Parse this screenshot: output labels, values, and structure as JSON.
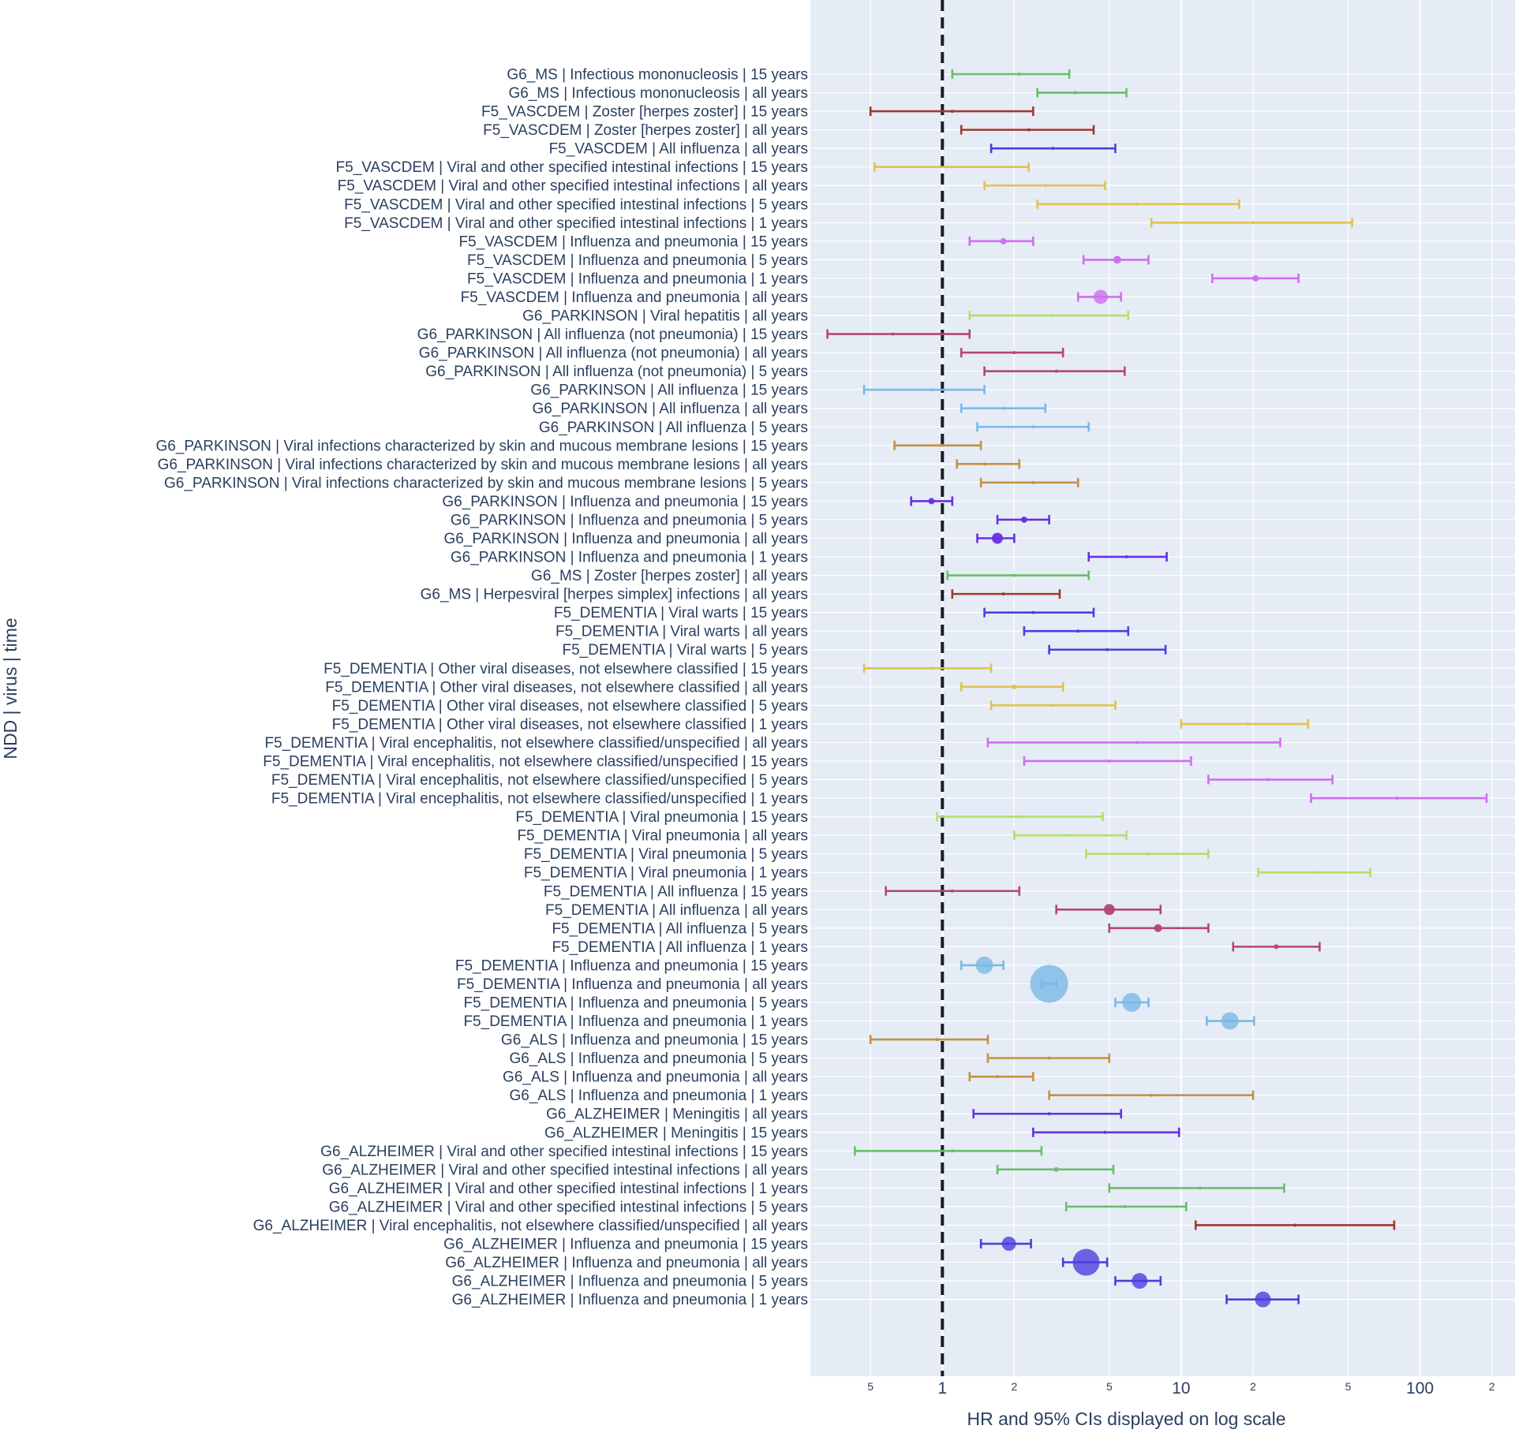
{
  "chart_data": {
    "type": "scatter",
    "xlabel": "HR and 95% CIs displayed on log scale",
    "ylabel": "NDD | virus | time",
    "x_scale": "log",
    "xlim": [
      0.28,
      250
    ],
    "x_ticks_major": [
      {
        "value": 1,
        "label": "1"
      },
      {
        "value": 10,
        "label": "10"
      },
      {
        "value": 100,
        "label": "100"
      }
    ],
    "x_ticks_minor": [
      {
        "value": 0.5,
        "label": "5"
      },
      {
        "value": 2,
        "label": "2"
      },
      {
        "value": 5,
        "label": "5"
      },
      {
        "value": 20,
        "label": "2"
      },
      {
        "value": 50,
        "label": "5"
      },
      {
        "value": 200,
        "label": "2"
      }
    ],
    "reference_line": {
      "x": 1,
      "style": "dashed"
    },
    "grid": true,
    "background": "#e5ecf6",
    "rows": [
      {
        "label": "G6_MS | Infectious mononucleosis | 15 years",
        "hr": 2.1,
        "lo": 1.1,
        "hi": 3.4,
        "color": "#6abf69",
        "size": 0
      },
      {
        "label": "G6_MS | Infectious mononucleosis | all years",
        "hr": 3.6,
        "lo": 2.5,
        "hi": 5.9,
        "color": "#6abf69",
        "size": 0
      },
      {
        "label": "F5_VASCDEM | Zoster [herpes zoster] | 15 years",
        "hr": 1.1,
        "lo": 0.5,
        "hi": 2.4,
        "color": "#a0392e",
        "size": 0
      },
      {
        "label": "F5_VASCDEM | Zoster [herpes zoster] | all years",
        "hr": 2.3,
        "lo": 1.2,
        "hi": 4.3,
        "color": "#a0392e",
        "size": 0
      },
      {
        "label": "F5_VASCDEM | All influenza | all years",
        "hr": 2.9,
        "lo": 1.6,
        "hi": 5.3,
        "color": "#4b3fe0",
        "size": 0
      },
      {
        "label": "F5_VASCDEM | Viral and other specified intestinal infections | 15 years",
        "hr": 1.1,
        "lo": 0.52,
        "hi": 2.3,
        "color": "#e0c350",
        "size": 0
      },
      {
        "label": "F5_VASCDEM | Viral and other specified intestinal infections | all years",
        "hr": 2.7,
        "lo": 1.5,
        "hi": 4.8,
        "color": "#e0c350",
        "size": 0
      },
      {
        "label": "F5_VASCDEM | Viral and other specified intestinal infections | 5 years",
        "hr": 6.5,
        "lo": 2.5,
        "hi": 17.5,
        "color": "#e0c350",
        "size": 0
      },
      {
        "label": "F5_VASCDEM | Viral and other specified intestinal infections | 1 years",
        "hr": 20,
        "lo": 7.5,
        "hi": 52,
        "color": "#e0c350",
        "size": 0
      },
      {
        "label": "F5_VASCDEM | Influenza and pneumonia | 15 years",
        "hr": 1.8,
        "lo": 1.3,
        "hi": 2.4,
        "color": "#cf6ef0",
        "size": 4
      },
      {
        "label": "F5_VASCDEM | Influenza and pneumonia | 5 years",
        "hr": 5.4,
        "lo": 3.9,
        "hi": 7.3,
        "color": "#cf6ef0",
        "size": 5
      },
      {
        "label": "F5_VASCDEM | Influenza and pneumonia | 1 years",
        "hr": 20.5,
        "lo": 13.5,
        "hi": 31,
        "color": "#cf6ef0",
        "size": 4
      },
      {
        "label": "F5_VASCDEM | Influenza and pneumonia | all years",
        "hr": 4.6,
        "lo": 3.7,
        "hi": 5.6,
        "color": "#cf6ef0",
        "size": 9
      },
      {
        "label": "G6_PARKINSON | Viral hepatitis | all years",
        "hr": 2.9,
        "lo": 1.3,
        "hi": 6.0,
        "color": "#b2e06b",
        "size": 0
      },
      {
        "label": "G6_PARKINSON | All influenza (not pneumonia) | 15 years",
        "hr": 0.62,
        "lo": 0.33,
        "hi": 1.3,
        "color": "#b34770",
        "size": 0
      },
      {
        "label": "G6_PARKINSON | All influenza (not pneumonia) | all years",
        "hr": 2.0,
        "lo": 1.2,
        "hi": 3.2,
        "color": "#b34770",
        "size": 0
      },
      {
        "label": "G6_PARKINSON | All influenza (not pneumonia) | 5 years",
        "hr": 3.0,
        "lo": 1.5,
        "hi": 5.8,
        "color": "#b34770",
        "size": 0
      },
      {
        "label": "G6_PARKINSON | All influenza | 15 years",
        "hr": 0.9,
        "lo": 0.47,
        "hi": 1.5,
        "color": "#7ab9e6",
        "size": 0
      },
      {
        "label": "G6_PARKINSON | All influenza | all years",
        "hr": 1.8,
        "lo": 1.2,
        "hi": 2.7,
        "color": "#7ab9e6",
        "size": 0
      },
      {
        "label": "G6_PARKINSON | All influenza | 5 years",
        "hr": 2.4,
        "lo": 1.4,
        "hi": 4.1,
        "color": "#7ab9e6",
        "size": 0
      },
      {
        "label": "G6_PARKINSON | Viral infections characterized by skin and mucous membrane lesions | 15 years",
        "hr": 1.0,
        "lo": 0.63,
        "hi": 1.45,
        "color": "#c89040",
        "size": 0
      },
      {
        "label": "G6_PARKINSON | Viral infections characterized by skin and mucous membrane lesions | all years",
        "hr": 1.5,
        "lo": 1.15,
        "hi": 2.1,
        "color": "#c89040",
        "size": 0
      },
      {
        "label": "G6_PARKINSON | Viral infections characterized by skin and mucous membrane lesions | 5 years",
        "hr": 2.4,
        "lo": 1.45,
        "hi": 3.7,
        "color": "#c89040",
        "size": 0
      },
      {
        "label": "G6_PARKINSON | Influenza and pneumonia | 15 years",
        "hr": 0.9,
        "lo": 0.74,
        "hi": 1.1,
        "color": "#6930e0",
        "size": 4
      },
      {
        "label": "G6_PARKINSON | Influenza and pneumonia | 5 years",
        "hr": 2.2,
        "lo": 1.7,
        "hi": 2.8,
        "color": "#6930e0",
        "size": 4
      },
      {
        "label": "G6_PARKINSON | Influenza and pneumonia | all years",
        "hr": 1.7,
        "lo": 1.4,
        "hi": 2.0,
        "color": "#6930e0",
        "size": 7
      },
      {
        "label": "G6_PARKINSON | Influenza and pneumonia | 1 years",
        "hr": 5.9,
        "lo": 4.1,
        "hi": 8.7,
        "color": "#6930e0",
        "size": 0
      },
      {
        "label": "G6_MS | Zoster [herpes zoster] | all years",
        "hr": 2.0,
        "lo": 1.05,
        "hi": 4.1,
        "color": "#6abf69",
        "size": 0
      },
      {
        "label": "G6_MS | Herpesviral [herpes simplex] infections | all years",
        "hr": 1.8,
        "lo": 1.1,
        "hi": 3.1,
        "color": "#a0392e",
        "size": 0
      },
      {
        "label": "F5_DEMENTIA | Viral warts | 15 years",
        "hr": 2.4,
        "lo": 1.5,
        "hi": 4.3,
        "color": "#4b3fe0",
        "size": 0
      },
      {
        "label": "F5_DEMENTIA | Viral warts | all years",
        "hr": 3.7,
        "lo": 2.2,
        "hi": 6.0,
        "color": "#4b3fe0",
        "size": 0
      },
      {
        "label": "F5_DEMENTIA | Viral warts | 5 years",
        "hr": 4.9,
        "lo": 2.8,
        "hi": 8.6,
        "color": "#4b3fe0",
        "size": 0
      },
      {
        "label": "F5_DEMENTIA | Other viral diseases, not elsewhere classified | 15 years",
        "hr": 0.9,
        "lo": 0.47,
        "hi": 1.6,
        "color": "#e0c350",
        "size": 0
      },
      {
        "label": "F5_DEMENTIA | Other viral diseases, not elsewhere classified | all years",
        "hr": 2.0,
        "lo": 1.2,
        "hi": 3.2,
        "color": "#e0c350",
        "size": 3
      },
      {
        "label": "F5_DEMENTIA | Other viral diseases, not elsewhere classified | 5 years",
        "hr": 2.9,
        "lo": 1.6,
        "hi": 5.3,
        "color": "#e0c350",
        "size": 0
      },
      {
        "label": "F5_DEMENTIA | Other viral diseases, not elsewhere classified | 1 years",
        "hr": 19,
        "lo": 10,
        "hi": 34,
        "color": "#e0c350",
        "size": 0
      },
      {
        "label": "F5_DEMENTIA | Viral encephalitis, not elsewhere classified/unspecified | all years",
        "hr": 6.5,
        "lo": 1.55,
        "hi": 26,
        "color": "#cf6ef0",
        "size": 0
      },
      {
        "label": "F5_DEMENTIA | Viral encephalitis, not elsewhere classified/unspecified | 15 years",
        "hr": 5.0,
        "lo": 2.2,
        "hi": 11,
        "color": "#cf6ef0",
        "size": 0
      },
      {
        "label": "F5_DEMENTIA | Viral encephalitis, not elsewhere classified/unspecified | 5 years",
        "hr": 23,
        "lo": 13,
        "hi": 43,
        "color": "#cf6ef0",
        "size": 0
      },
      {
        "label": "F5_DEMENTIA | Viral encephalitis, not elsewhere classified/unspecified | 1 years",
        "hr": 80,
        "lo": 35,
        "hi": 190,
        "color": "#cf6ef0",
        "size": 0
      },
      {
        "label": "F5_DEMENTIA | Viral pneumonia | 15 years",
        "hr": 2.1,
        "lo": 0.95,
        "hi": 4.7,
        "color": "#b2e06b",
        "size": 0
      },
      {
        "label": "F5_DEMENTIA | Viral pneumonia | all years",
        "hr": 3.4,
        "lo": 2.0,
        "hi": 5.9,
        "color": "#b2e06b",
        "size": 0
      },
      {
        "label": "F5_DEMENTIA | Viral pneumonia | 5 years",
        "hr": 7.3,
        "lo": 4.0,
        "hi": 13,
        "color": "#b2e06b",
        "size": 0
      },
      {
        "label": "F5_DEMENTIA | Viral pneumonia | 1 years",
        "hr": 37,
        "lo": 21,
        "hi": 62,
        "color": "#b2e06b",
        "size": 0
      },
      {
        "label": "F5_DEMENTIA | All influenza | 15 years",
        "hr": 1.1,
        "lo": 0.58,
        "hi": 2.1,
        "color": "#b34770",
        "size": 0
      },
      {
        "label": "F5_DEMENTIA | All influenza | all years",
        "hr": 5.0,
        "lo": 3.0,
        "hi": 8.2,
        "color": "#b34770",
        "size": 7
      },
      {
        "label": "F5_DEMENTIA | All influenza | 5 years",
        "hr": 8.0,
        "lo": 5.0,
        "hi": 13,
        "color": "#b34770",
        "size": 5
      },
      {
        "label": "F5_DEMENTIA | All influenza | 1 years",
        "hr": 25,
        "lo": 16.5,
        "hi": 38,
        "color": "#b34770",
        "size": 3
      },
      {
        "label": "F5_DEMENTIA | Influenza and pneumonia | 15 years",
        "hr": 1.5,
        "lo": 1.2,
        "hi": 1.8,
        "color": "#7ab9e6",
        "size": 11
      },
      {
        "label": "F5_DEMENTIA | Influenza and pneumonia | all years",
        "hr": 2.8,
        "lo": 2.6,
        "hi": 3.0,
        "color": "#7ab9e6",
        "size": 24
      },
      {
        "label": "F5_DEMENTIA | Influenza and pneumonia | 5 years",
        "hr": 6.2,
        "lo": 5.3,
        "hi": 7.3,
        "color": "#7ab9e6",
        "size": 12
      },
      {
        "label": "F5_DEMENTIA | Influenza and pneumonia | 1 years",
        "hr": 16,
        "lo": 12.8,
        "hi": 20.2,
        "color": "#7ab9e6",
        "size": 11
      },
      {
        "label": "G6_ALS | Influenza and pneumonia | 15 years",
        "hr": 0.95,
        "lo": 0.5,
        "hi": 1.55,
        "color": "#c89040",
        "size": 0
      },
      {
        "label": "G6_ALS | Influenza and pneumonia | 5 years",
        "hr": 2.8,
        "lo": 1.55,
        "hi": 5.0,
        "color": "#c89040",
        "size": 0
      },
      {
        "label": "G6_ALS | Influenza and pneumonia | all years",
        "hr": 1.7,
        "lo": 1.3,
        "hi": 2.4,
        "color": "#c89040",
        "size": 0
      },
      {
        "label": "G6_ALS | Influenza and pneumonia | 1 years",
        "hr": 7.5,
        "lo": 2.8,
        "hi": 20,
        "color": "#c89040",
        "size": 0
      },
      {
        "label": "G6_ALZHEIMER | Meningitis | all years",
        "hr": 2.8,
        "lo": 1.35,
        "hi": 5.6,
        "color": "#6930e0",
        "size": 0
      },
      {
        "label": "G6_ALZHEIMER | Meningitis | 15 years",
        "hr": 4.8,
        "lo": 2.4,
        "hi": 9.8,
        "color": "#6930e0",
        "size": 0
      },
      {
        "label": "G6_ALZHEIMER | Viral and other specified intestinal infections | 15 years",
        "hr": 1.1,
        "lo": 0.43,
        "hi": 2.6,
        "color": "#6abf69",
        "size": 0
      },
      {
        "label": "G6_ALZHEIMER | Viral and other specified intestinal infections | all years",
        "hr": 3.0,
        "lo": 1.7,
        "hi": 5.2,
        "color": "#6abf69",
        "size": 3
      },
      {
        "label": "G6_ALZHEIMER | Viral and other specified intestinal infections | 1 years",
        "hr": 12,
        "lo": 5.0,
        "hi": 27,
        "color": "#6abf69",
        "size": 0
      },
      {
        "label": "G6_ALZHEIMER | Viral and other specified intestinal infections | 5 years",
        "hr": 5.8,
        "lo": 3.3,
        "hi": 10.5,
        "color": "#6abf69",
        "size": 0
      },
      {
        "label": "G6_ALZHEIMER | Viral encephalitis, not elsewhere classified/unspecified | all years",
        "hr": 30,
        "lo": 11.5,
        "hi": 78,
        "color": "#a0392e",
        "size": 0
      },
      {
        "label": "G6_ALZHEIMER | Influenza and pneumonia | 15 years",
        "hr": 1.9,
        "lo": 1.45,
        "hi": 2.35,
        "color": "#4b3fe0",
        "size": 9
      },
      {
        "label": "G6_ALZHEIMER | Influenza and pneumonia | all years",
        "hr": 4.0,
        "lo": 3.2,
        "hi": 4.9,
        "color": "#4b3fe0",
        "size": 17
      },
      {
        "label": "G6_ALZHEIMER | Influenza and pneumonia | 5 years",
        "hr": 6.7,
        "lo": 5.3,
        "hi": 8.2,
        "color": "#4b3fe0",
        "size": 10
      },
      {
        "label": "G6_ALZHEIMER | Influenza and pneumonia | 1 years",
        "hr": 22,
        "lo": 15.5,
        "hi": 31,
        "color": "#4b3fe0",
        "size": 10
      }
    ]
  }
}
